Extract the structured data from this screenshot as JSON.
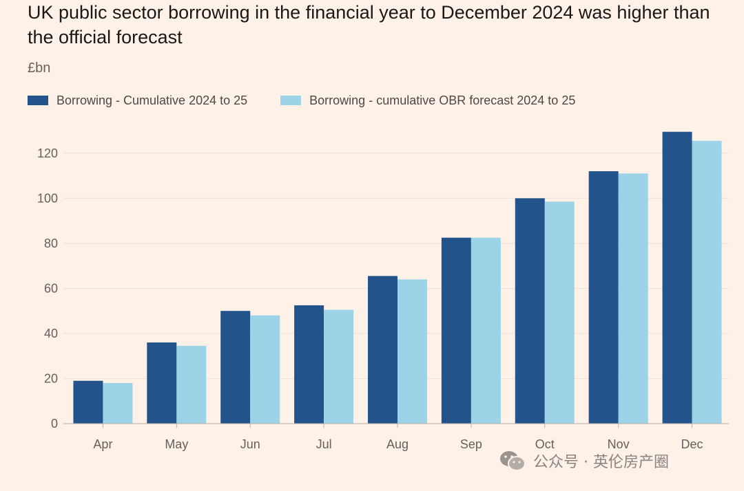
{
  "title": "UK public sector borrowing in the financial year to December 2024 was higher than the official forecast",
  "unit_label": "£bn",
  "watermark": {
    "text": "公众号 · 英伦房产圈",
    "icon": "wechat-icon"
  },
  "colors": {
    "background": "#fdf1e8",
    "series1": "#22538a",
    "series2": "#9dd3e6",
    "grid": "#ebe1d8",
    "axis": "#b8b0a8"
  },
  "chart_data": {
    "type": "bar",
    "categories": [
      "Apr",
      "May",
      "Jun",
      "Jul",
      "Aug",
      "Sep",
      "Oct",
      "Nov",
      "Dec"
    ],
    "series": [
      {
        "name": "Borrowing - Cumulative 2024 to 25",
        "color": "#22538a",
        "values": [
          19,
          36,
          50,
          52.5,
          65.5,
          82.5,
          100,
          112,
          129.5
        ]
      },
      {
        "name": "Borrowing - cumulative OBR forecast 2024 to 25",
        "color": "#9dd3e6",
        "values": [
          18,
          34.5,
          48,
          50.5,
          64,
          82.5,
          98.5,
          111,
          125.5
        ]
      }
    ],
    "ylabel": "£bn",
    "ylim": [
      0,
      130
    ],
    "yticks": [
      0,
      20,
      40,
      60,
      80,
      100,
      120
    ],
    "grid": true,
    "legend_position": "top-left"
  }
}
